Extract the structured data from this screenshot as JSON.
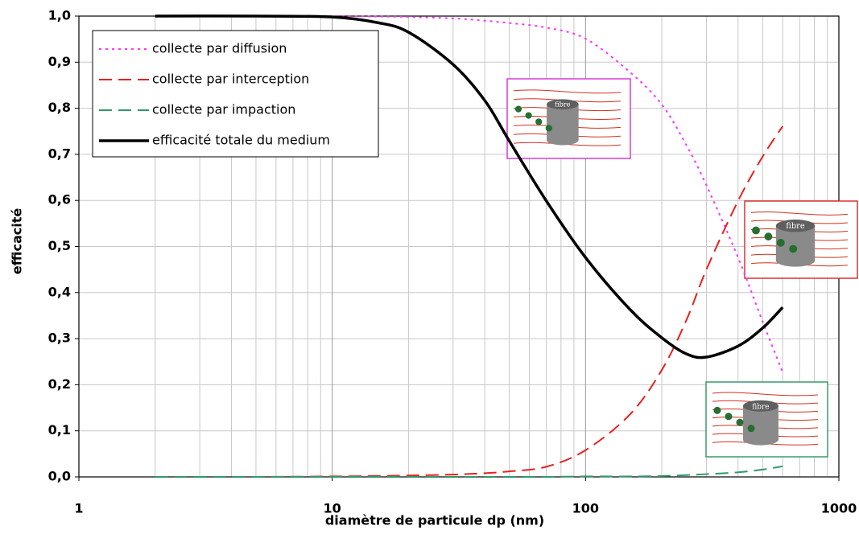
{
  "chart_data": {
    "type": "line",
    "xlabel": "diamètre de particule dp (nm)",
    "ylabel": "efficacité",
    "xscale": "log",
    "x": [
      2,
      5,
      10,
      15,
      20,
      30,
      40,
      50,
      70,
      100,
      150,
      200,
      250,
      300,
      400,
      500,
      600
    ],
    "series": [
      {
        "name": "collecte par diffusion",
        "color": "#ff33ff",
        "dash": "dotted",
        "values": [
          1,
          1,
          1,
          0.999,
          0.998,
          0.995,
          0.99,
          0.985,
          0.975,
          0.951,
          0.878,
          0.808,
          0.72,
          0.633,
          0.476,
          0.337,
          0.227
        ]
      },
      {
        "name": "collecte par interception",
        "color": "#e8201e",
        "dash": "dashed",
        "values": [
          0,
          0,
          0.001,
          0.002,
          0.003,
          0.005,
          0.008,
          0.012,
          0.022,
          0.058,
          0.136,
          0.232,
          0.34,
          0.45,
          0.599,
          0.695,
          0.761
        ]
      },
      {
        "name": "collecte par impaction",
        "color": "#2e9a6a",
        "dash": "dashed",
        "values": [
          0,
          0,
          0,
          0,
          0,
          0,
          0,
          0,
          0,
          0.001,
          0.001,
          0.002,
          0.004,
          0.006,
          0.01,
          0.016,
          0.023
        ]
      },
      {
        "name": "efficacité totale du medium",
        "color": "#000000",
        "dash": "solid",
        "values": [
          1,
          1,
          0.998,
          0.986,
          0.965,
          0.895,
          0.817,
          0.729,
          0.599,
          0.476,
          0.363,
          0.302,
          0.267,
          0.26,
          0.284,
          0.323,
          0.368
        ]
      }
    ],
    "xlim": [
      1,
      1000
    ],
    "xticks": [
      1,
      10,
      100,
      1000
    ],
    "xminorticks": [
      2,
      3,
      4,
      5,
      6,
      7,
      8,
      9,
      20,
      30,
      40,
      50,
      60,
      70,
      80,
      90,
      200,
      300,
      400,
      500,
      600,
      700,
      800,
      900
    ],
    "ylim": [
      0,
      1
    ],
    "yticks": [
      {
        "value": 0,
        "label": "0,0"
      },
      {
        "value": 0.1,
        "label": "0,1"
      },
      {
        "value": 0.2,
        "label": "0,2"
      },
      {
        "value": 0.3,
        "label": "0,3"
      },
      {
        "value": 0.4,
        "label": "0,4"
      },
      {
        "value": 0.5,
        "label": "0,5"
      },
      {
        "value": 0.6,
        "label": "0,6"
      },
      {
        "value": 0.7,
        "label": "0,7"
      },
      {
        "value": 0.8,
        "label": "0,8"
      },
      {
        "value": 0.9,
        "label": "0,9"
      },
      {
        "value": 1,
        "label": "1,0"
      }
    ],
    "grid": true,
    "legend": "upper left",
    "insets": [
      "fibre",
      "fibre",
      "fibre"
    ]
  }
}
